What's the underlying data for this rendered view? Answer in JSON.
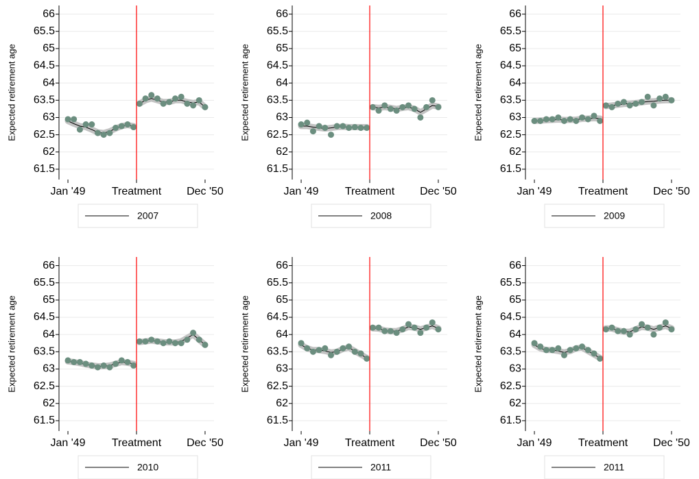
{
  "chart_data": [
    {
      "type": "line",
      "ylabel": "Expected retirement age",
      "x": [
        0,
        1,
        2,
        3,
        4,
        5,
        6,
        7,
        8,
        9,
        10,
        11,
        12,
        13,
        14,
        15,
        16,
        17,
        18,
        19,
        20,
        21,
        22,
        23
      ],
      "xlim": [
        -1.5,
        24.5
      ],
      "xticks": [
        {
          "value": 0,
          "label": "Jan '49"
        },
        {
          "value": 11.5,
          "label": "Treatment"
        },
        {
          "value": 23,
          "label": "Dec '50"
        }
      ],
      "ylim": [
        61.2,
        66.25
      ],
      "yticks": [
        61.5,
        62,
        62.5,
        63,
        63.5,
        64,
        64.5,
        65,
        65.5,
        66
      ],
      "vline": {
        "value": 11.5,
        "color": "#ff0000"
      },
      "grid": true,
      "series": [
        {
          "name": "2007",
          "color": "#000000",
          "values": [
            62.9,
            62.82,
            62.75,
            62.72,
            62.65,
            62.57,
            62.55,
            62.6,
            62.68,
            62.75,
            62.78,
            62.75,
            63.4,
            63.5,
            63.55,
            63.5,
            63.45,
            63.45,
            63.5,
            63.5,
            63.45,
            63.42,
            63.45,
            63.3
          ]
        }
      ],
      "points": {
        "color": "#6b8e7f",
        "values": [
          62.95,
          62.95,
          62.65,
          62.8,
          62.8,
          62.55,
          62.5,
          62.55,
          62.7,
          62.75,
          62.8,
          62.72,
          63.4,
          63.55,
          63.65,
          63.55,
          63.4,
          63.45,
          63.55,
          63.6,
          63.4,
          63.35,
          63.5,
          63.3
        ]
      }
    },
    {
      "type": "line",
      "ylabel": "Expected retirement age",
      "x": [
        0,
        1,
        2,
        3,
        4,
        5,
        6,
        7,
        8,
        9,
        10,
        11,
        12,
        13,
        14,
        15,
        16,
        17,
        18,
        19,
        20,
        21,
        22,
        23
      ],
      "xlim": [
        -1.5,
        24.5
      ],
      "xticks": [
        {
          "value": 0,
          "label": "Jan '49"
        },
        {
          "value": 11.5,
          "label": "Treatment"
        },
        {
          "value": 23,
          "label": "Dec '50"
        }
      ],
      "ylim": [
        61.2,
        66.25
      ],
      "yticks": [
        61.5,
        62,
        62.5,
        63,
        63.5,
        64,
        64.5,
        65,
        65.5,
        66
      ],
      "vline": {
        "value": 11.5,
        "color": "#ff0000"
      },
      "grid": true,
      "series": [
        {
          "name": "2008",
          "color": "#000000",
          "values": [
            62.75,
            62.75,
            62.72,
            62.7,
            62.68,
            62.7,
            62.72,
            62.73,
            62.72,
            62.72,
            62.72,
            62.72,
            63.3,
            63.28,
            63.3,
            63.28,
            63.25,
            63.28,
            63.3,
            63.25,
            63.15,
            63.25,
            63.35,
            63.32
          ]
        }
      ],
      "points": {
        "color": "#6b8e7f",
        "values": [
          62.8,
          62.85,
          62.6,
          62.75,
          62.7,
          62.5,
          62.75,
          62.75,
          62.7,
          62.72,
          62.7,
          62.7,
          63.3,
          63.2,
          63.35,
          63.25,
          63.2,
          63.3,
          63.35,
          63.25,
          63.0,
          63.3,
          63.5,
          63.3
        ]
      }
    },
    {
      "type": "line",
      "ylabel": "Expected retirement age",
      "x": [
        0,
        1,
        2,
        3,
        4,
        5,
        6,
        7,
        8,
        9,
        10,
        11,
        12,
        13,
        14,
        15,
        16,
        17,
        18,
        19,
        20,
        21,
        22,
        23
      ],
      "xlim": [
        -1.5,
        24.5
      ],
      "xticks": [
        {
          "value": 0,
          "label": "Jan '49"
        },
        {
          "value": 11.5,
          "label": "Treatment"
        },
        {
          "value": 23,
          "label": "Dec '50"
        }
      ],
      "ylim": [
        61.2,
        66.25
      ],
      "yticks": [
        61.5,
        62,
        62.5,
        63,
        63.5,
        64,
        64.5,
        65,
        65.5,
        66
      ],
      "vline": {
        "value": 11.5,
        "color": "#ff0000"
      },
      "grid": true,
      "series": [
        {
          "name": "2009",
          "color": "#000000",
          "values": [
            62.9,
            62.91,
            62.92,
            62.93,
            62.94,
            62.93,
            62.93,
            62.94,
            62.96,
            62.97,
            62.98,
            62.97,
            63.33,
            63.35,
            63.37,
            63.39,
            63.4,
            63.42,
            63.44,
            63.46,
            63.47,
            63.49,
            63.5,
            63.5
          ]
        }
      ],
      "points": {
        "color": "#6b8e7f",
        "values": [
          62.9,
          62.9,
          62.95,
          62.95,
          63.0,
          62.9,
          62.95,
          62.9,
          63.0,
          62.95,
          63.05,
          62.9,
          63.35,
          63.3,
          63.4,
          63.45,
          63.35,
          63.4,
          63.45,
          63.6,
          63.35,
          63.55,
          63.6,
          63.5
        ]
      }
    },
    {
      "type": "line",
      "ylabel": "Expected retirement age",
      "x": [
        0,
        1,
        2,
        3,
        4,
        5,
        6,
        7,
        8,
        9,
        10,
        11,
        12,
        13,
        14,
        15,
        16,
        17,
        18,
        19,
        20,
        21,
        22,
        23
      ],
      "xlim": [
        -1.5,
        24.5
      ],
      "xticks": [
        {
          "value": 0,
          "label": "Jan '49"
        },
        {
          "value": 11.5,
          "label": "Treatment"
        },
        {
          "value": 23,
          "label": "Dec '50"
        }
      ],
      "ylim": [
        61.2,
        66.25
      ],
      "yticks": [
        61.5,
        62,
        62.5,
        63,
        63.5,
        64,
        64.5,
        65,
        65.5,
        66
      ],
      "vline": {
        "value": 11.5,
        "color": "#ff0000"
      },
      "grid": true,
      "series": [
        {
          "name": "2010",
          "color": "#000000",
          "values": [
            63.22,
            63.2,
            63.17,
            63.13,
            63.1,
            63.08,
            63.08,
            63.1,
            63.15,
            63.2,
            63.18,
            63.15,
            63.78,
            63.8,
            63.82,
            63.8,
            63.78,
            63.77,
            63.77,
            63.8,
            63.9,
            64.0,
            63.85,
            63.7
          ]
        }
      ],
      "points": {
        "color": "#6b8e7f",
        "values": [
          63.25,
          63.2,
          63.2,
          63.15,
          63.1,
          63.05,
          63.1,
          63.05,
          63.15,
          63.25,
          63.2,
          63.1,
          63.8,
          63.8,
          63.85,
          63.8,
          63.75,
          63.8,
          63.75,
          63.75,
          63.85,
          64.05,
          63.85,
          63.7
        ]
      }
    },
    {
      "type": "line",
      "ylabel": "Expected retirement age",
      "x": [
        0,
        1,
        2,
        3,
        4,
        5,
        6,
        7,
        8,
        9,
        10,
        11,
        12,
        13,
        14,
        15,
        16,
        17,
        18,
        19,
        20,
        21,
        22,
        23
      ],
      "xlim": [
        -1.5,
        24.5
      ],
      "xticks": [
        {
          "value": 0,
          "label": "Jan '49"
        },
        {
          "value": 11.5,
          "label": "Treatment"
        },
        {
          "value": 23,
          "label": "Dec '50"
        }
      ],
      "ylim": [
        61.2,
        66.25
      ],
      "yticks": [
        61.5,
        62,
        62.5,
        63,
        63.5,
        64,
        64.5,
        65,
        65.5,
        66
      ],
      "vline": {
        "value": 11.5,
        "color": "#ff0000"
      },
      "grid": true,
      "series": [
        {
          "name": "2011",
          "color": "#000000",
          "values": [
            63.7,
            63.6,
            63.55,
            63.55,
            63.52,
            63.48,
            63.5,
            63.58,
            63.62,
            63.52,
            63.42,
            63.32,
            64.18,
            64.17,
            64.12,
            64.1,
            64.1,
            64.15,
            64.22,
            64.2,
            64.15,
            64.2,
            64.25,
            64.18
          ]
        }
      ],
      "points": {
        "color": "#6b8e7f",
        "values": [
          63.75,
          63.6,
          63.5,
          63.55,
          63.6,
          63.4,
          63.5,
          63.6,
          63.65,
          63.5,
          63.45,
          63.3,
          64.2,
          64.2,
          64.1,
          64.1,
          64.05,
          64.15,
          64.3,
          64.2,
          64.05,
          64.2,
          64.35,
          64.15
        ]
      }
    },
    {
      "type": "line",
      "ylabel": "Expected retirement age",
      "x": [
        0,
        1,
        2,
        3,
        4,
        5,
        6,
        7,
        8,
        9,
        10,
        11,
        12,
        13,
        14,
        15,
        16,
        17,
        18,
        19,
        20,
        21,
        22,
        23
      ],
      "xlim": [
        -1.5,
        24.5
      ],
      "xticks": [
        {
          "value": 0,
          "label": "Jan '49"
        },
        {
          "value": 11.5,
          "label": "Treatment"
        },
        {
          "value": 23,
          "label": "Dec '50"
        }
      ],
      "ylim": [
        61.2,
        66.25
      ],
      "yticks": [
        61.5,
        62,
        62.5,
        63,
        63.5,
        64,
        64.5,
        65,
        65.5,
        66
      ],
      "vline": {
        "value": 11.5,
        "color": "#ff0000"
      },
      "grid": true,
      "series": [
        {
          "name": "2011",
          "color": "#000000",
          "values": [
            63.7,
            63.6,
            63.55,
            63.55,
            63.52,
            63.48,
            63.52,
            63.6,
            63.62,
            63.52,
            63.42,
            63.32,
            64.18,
            64.17,
            64.12,
            64.08,
            64.08,
            64.15,
            64.22,
            64.2,
            64.15,
            64.2,
            64.25,
            64.18
          ]
        }
      ],
      "points": {
        "color": "#6b8e7f",
        "values": [
          63.75,
          63.65,
          63.55,
          63.55,
          63.6,
          63.4,
          63.55,
          63.6,
          63.65,
          63.55,
          63.45,
          63.3,
          64.15,
          64.2,
          64.1,
          64.1,
          64.0,
          64.15,
          64.3,
          64.2,
          64.0,
          64.2,
          64.35,
          64.15
        ]
      }
    }
  ]
}
